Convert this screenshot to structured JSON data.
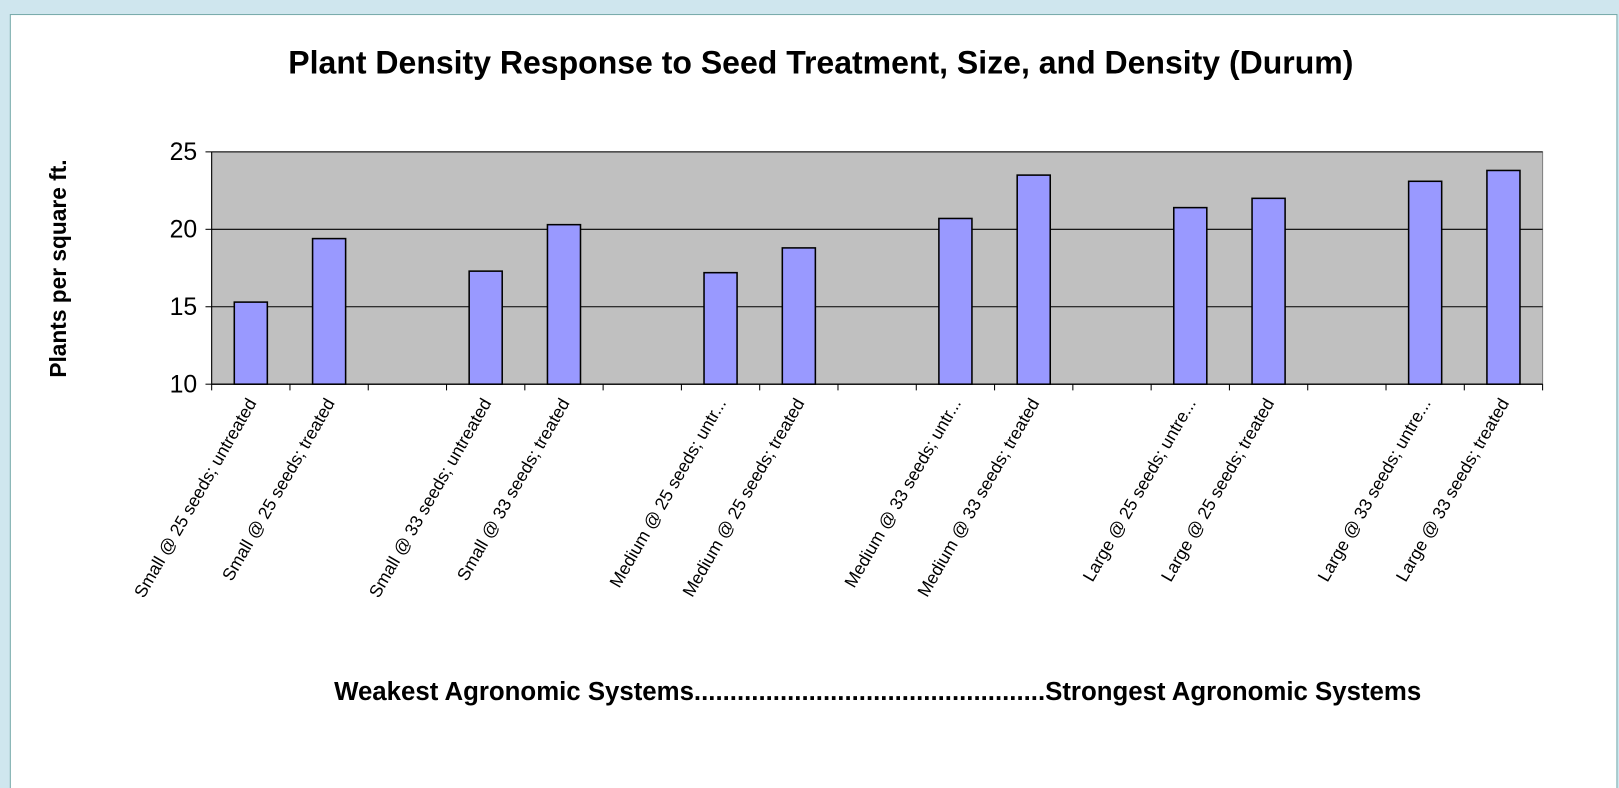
{
  "chart_data": {
    "type": "bar",
    "title": "Plant Density Response to Seed Treatment, Size, and Density (Durum)",
    "ylabel": "Plants per square ft.",
    "xlabel": "Weakest Agronomic Systems.................................................Strongest Agronomic Systems",
    "categories": [
      "Small @ 25 seeds; untreated",
      "Small @ 25 seeds; treated",
      null,
      "Small @ 33 seeds; untreated",
      "Small @ 33 seeds; treated",
      null,
      "Medium @ 25 seeds; untr...",
      "Medium @ 25 seeds; treated",
      null,
      "Medium @ 33 seeds; untr...",
      "Medium @ 33 seeds; treated",
      null,
      "Large @ 25 seeds; untre...",
      "Large @ 25 seeds; treated",
      null,
      "Large @ 33 seeds; untre...",
      "Large @ 33 seeds; treated"
    ],
    "values": [
      15.3,
      19.4,
      null,
      17.3,
      20.3,
      null,
      17.2,
      18.8,
      null,
      20.7,
      23.5,
      null,
      21.4,
      22.0,
      null,
      23.1,
      23.8
    ],
    "color": "#9999ff",
    "ylim": [
      10,
      25
    ],
    "yticks": [
      10,
      15,
      20,
      25
    ],
    "grid": true
  }
}
